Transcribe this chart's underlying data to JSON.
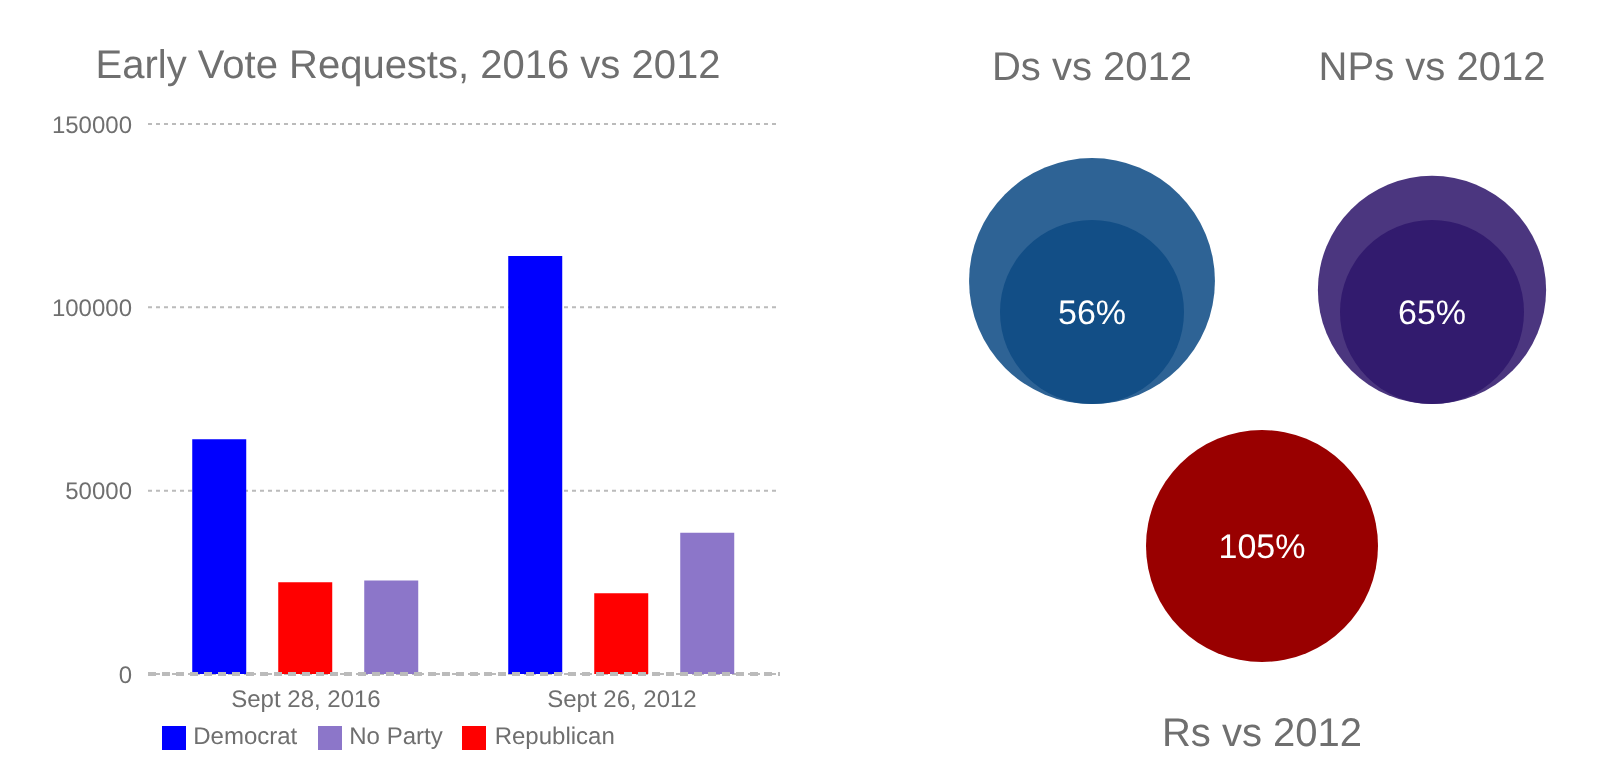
{
  "chart_data": [
    {
      "type": "bar",
      "title": "Early Vote Requests, 2016 vs 2012",
      "categories": [
        "Sept 28, 2016",
        "Sept 26, 2012"
      ],
      "series": [
        {
          "name": "Democrat",
          "color": "#0000ff",
          "values": [
            64000,
            114000
          ]
        },
        {
          "name": "Republican",
          "color": "#ff0000",
          "values": [
            25000,
            22000
          ]
        },
        {
          "name": "No Party",
          "color": "#8c76c9",
          "values": [
            25500,
            38500
          ]
        }
      ],
      "ylim": [
        0,
        150000
      ],
      "yticks": [
        0,
        50000,
        100000,
        150000
      ],
      "grid": "y",
      "legend": "bottom"
    },
    {
      "type": "other",
      "categories": [
        "Ds vs 2012",
        "NPs vs 2012",
        "Rs vs 2012"
      ],
      "values": [
        56,
        65,
        105
      ],
      "value_labels": [
        "56%",
        "65%",
        "105%"
      ],
      "colors": [
        "#124e86",
        "#321b6e",
        "#990000"
      ]
    }
  ]
}
